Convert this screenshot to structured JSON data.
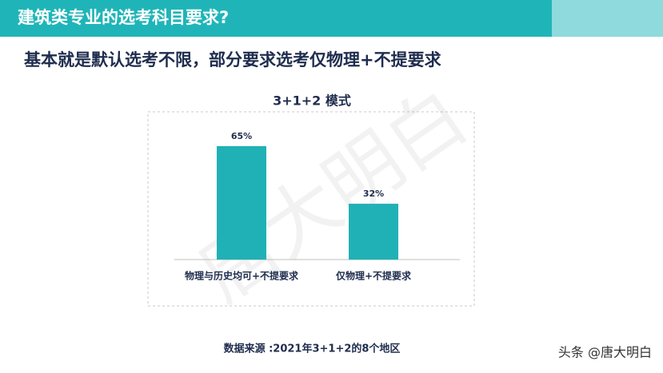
{
  "header": {
    "title": "建筑类专业的选考科目要求?"
  },
  "subtitle": "基本就是默认选考不限，部分要求选考仅物理+不提要求",
  "chart_data": {
    "type": "bar",
    "title": "3+1+2 模式",
    "categories": [
      "物理与历史均可+不提要求",
      "仅物理+不提要求"
    ],
    "values": [
      65,
      32
    ],
    "value_labels": [
      "65%",
      "32%"
    ],
    "color": "#20b1b6"
  },
  "source": "数据来源 :2021年3+1+2的8个地区",
  "watermark": "唐大明白",
  "credit": "头条 @唐大明白"
}
